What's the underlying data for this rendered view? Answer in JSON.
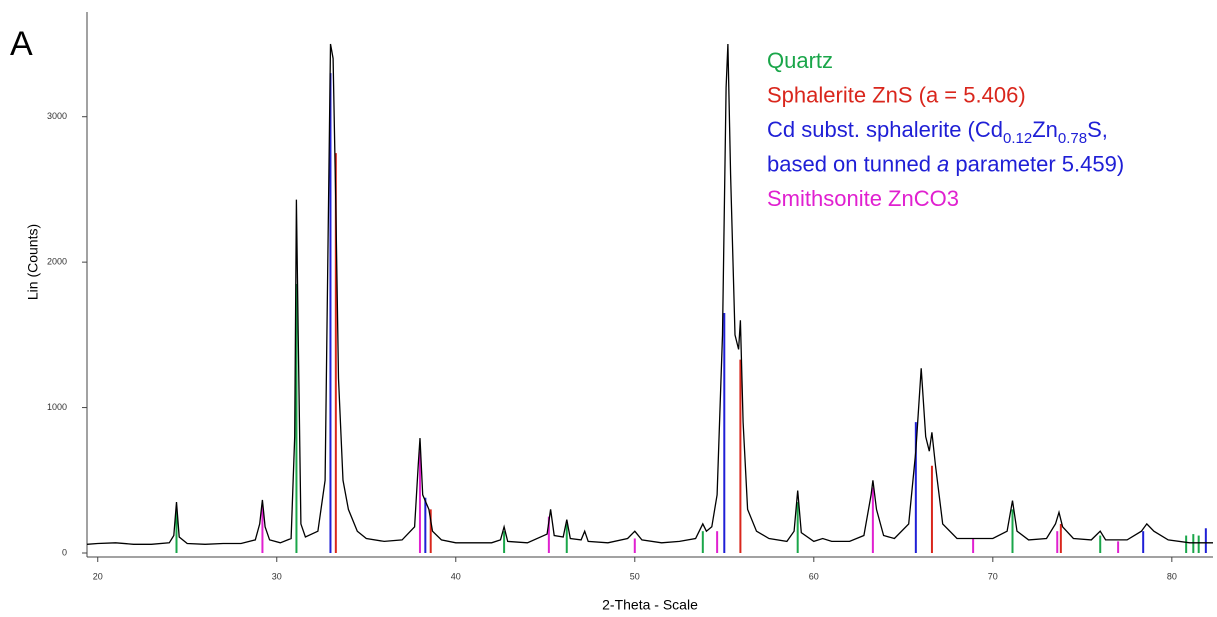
{
  "chart_data": {
    "type": "line",
    "panel_label": "A",
    "xlabel": "2-Theta - Scale",
    "ylabel": "Lin (Counts)",
    "xlim": [
      19.4,
      82.3
    ],
    "ylim": [
      0,
      3720
    ],
    "xticks": [
      20,
      30,
      40,
      50,
      60,
      70,
      80
    ],
    "yticks": [
      0,
      1000,
      2000,
      3000
    ],
    "color": "#000000",
    "x": [
      19.4,
      20,
      21,
      22,
      23,
      24,
      24.25,
      24.4,
      24.55,
      25,
      26,
      27,
      28,
      28.8,
      29.05,
      29.2,
      29.35,
      29.6,
      30.2,
      30.8,
      31.0,
      31.1,
      31.2,
      31.35,
      31.6,
      32.3,
      32.7,
      32.9,
      33.0,
      33.15,
      33.3,
      33.45,
      33.7,
      34.0,
      34.5,
      35,
      36,
      37,
      37.7,
      37.9,
      38.0,
      38.15,
      38.5,
      38.7,
      39.2,
      40,
      41,
      42,
      42.5,
      42.7,
      42.9,
      44,
      45.1,
      45.3,
      45.5,
      46.0,
      46.2,
      46.4,
      47.0,
      47.2,
      47.4,
      48.5,
      49.6,
      50.0,
      50.4,
      51.5,
      52.5,
      53.4,
      53.8,
      54.0,
      54.3,
      54.6,
      54.9,
      55.1,
      55.2,
      55.35,
      55.6,
      55.8,
      55.9,
      56.05,
      56.3,
      56.8,
      57.5,
      58.5,
      58.9,
      59.1,
      59.3,
      60,
      60.5,
      61,
      62,
      62.8,
      63.2,
      63.3,
      63.5,
      63.9,
      64.5,
      65.3,
      65.7,
      66.0,
      66.25,
      66.45,
      66.6,
      66.8,
      67.2,
      68,
      69,
      70,
      70.8,
      71.1,
      71.35,
      72,
      73,
      73.5,
      73.7,
      73.9,
      74.5,
      75.5,
      76.0,
      76.3,
      77.5,
      78.3,
      78.6,
      79.0,
      79.8,
      81,
      82.3
    ],
    "values": [
      60,
      65,
      70,
      60,
      60,
      70,
      120,
      350,
      110,
      65,
      60,
      65,
      65,
      90,
      200,
      365,
      180,
      90,
      70,
      100,
      800,
      2430,
      1500,
      200,
      110,
      150,
      500,
      2500,
      3500,
      3400,
      2400,
      1200,
      500,
      300,
      150,
      100,
      80,
      90,
      180,
      600,
      790,
      400,
      300,
      150,
      90,
      70,
      70,
      70,
      90,
      180,
      80,
      70,
      130,
      300,
      120,
      110,
      230,
      100,
      90,
      150,
      80,
      70,
      100,
      150,
      90,
      70,
      80,
      100,
      200,
      150,
      180,
      400,
      1500,
      3200,
      3500,
      2600,
      1500,
      1400,
      1600,
      900,
      300,
      150,
      100,
      80,
      150,
      430,
      140,
      80,
      100,
      80,
      80,
      120,
      400,
      500,
      300,
      120,
      100,
      200,
      700,
      1270,
      800,
      700,
      830,
      600,
      200,
      100,
      100,
      100,
      150,
      360,
      150,
      90,
      100,
      200,
      280,
      180,
      100,
      90,
      150,
      90,
      90,
      150,
      200,
      150,
      90,
      70,
      70
    ],
    "series": [
      {
        "name": "Quartz",
        "color": "#1aa64a",
        "x": [
          24.4,
          31.1,
          42.7,
          46.2,
          53.8,
          59.1,
          71.1,
          76.0,
          80.8,
          81.2,
          81.5
        ],
        "values": [
          300,
          1850,
          150,
          200,
          150,
          350,
          300,
          120,
          120,
          130,
          120
        ]
      },
      {
        "name": "Sphalerite ZnS (a = 5.406)",
        "color": "#d9261c",
        "x": [
          33.3,
          38.6,
          55.9,
          66.6,
          73.8
        ],
        "values": [
          2750,
          300,
          1330,
          600,
          200
        ]
      },
      {
        "name": [
          [
            {
              "text": "Cd subst. sphalerite (Cd"
            },
            {
              "text": "0.12",
              "style": "sub"
            },
            {
              "text": "Zn"
            },
            {
              "text": "0.78",
              "style": "sub"
            },
            {
              "text": "S,"
            }
          ],
          [
            {
              "text": "based on tunned "
            },
            {
              "text": "a",
              "style": "italic"
            },
            {
              "text": " parameter 5.459)"
            }
          ]
        ],
        "color": "#1f1fd6",
        "x": [
          33.0,
          38.3,
          55.0,
          65.7,
          78.4,
          81.9
        ],
        "values": [
          3300,
          380,
          1650,
          900,
          150,
          170
        ]
      },
      {
        "name": "Smithsonite ZnCO3",
        "color": "#e020d0",
        "x": [
          29.2,
          38.0,
          45.2,
          50.0,
          54.6,
          63.3,
          68.9,
          73.6,
          77.0
        ],
        "values": [
          330,
          700,
          250,
          100,
          150,
          450,
          100,
          150,
          80
        ]
      }
    ]
  }
}
